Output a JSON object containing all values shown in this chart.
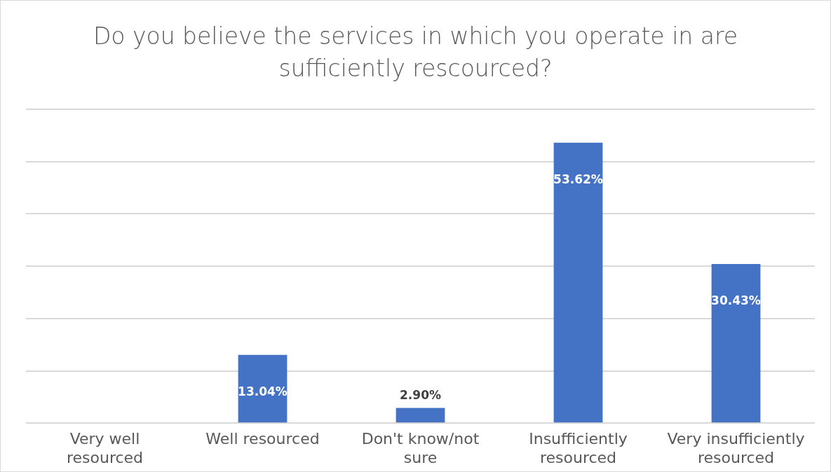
{
  "chart_data": {
    "type": "bar",
    "title": "Do you believe the services in which you operate in are sufficiently rescourced?",
    "categories": [
      "Very well resourced",
      "Well resourced",
      "Don't know/not sure",
      "Insufficiently resourced",
      "Very insufficiently resourced"
    ],
    "values": [
      0,
      13.04,
      2.9,
      53.62,
      30.43
    ],
    "value_labels": [
      null,
      "13.04%",
      "2.90%",
      "53.62%",
      "30.43%"
    ],
    "color": "#4472c4",
    "ylim": [
      0,
      60
    ],
    "yticks": [
      {
        "value": 0,
        "label": null
      },
      {
        "value": 10,
        "label": null
      },
      {
        "value": 20,
        "label": null
      },
      {
        "value": 30,
        "label": null
      },
      {
        "value": 40,
        "label": null
      },
      {
        "value": 50,
        "label": null
      },
      {
        "value": 60,
        "label": null
      }
    ],
    "tick_labels": "x",
    "grid": "y",
    "legend": false
  }
}
